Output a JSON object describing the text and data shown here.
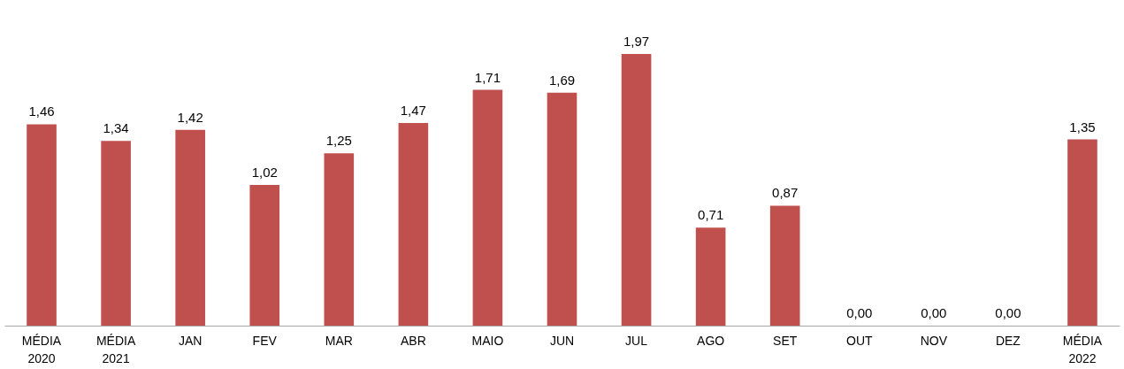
{
  "chart_data": {
    "type": "bar",
    "categories": [
      "MÉDIA 2020",
      "MÉDIA 2021",
      "JAN",
      "FEV",
      "MAR",
      "ABR",
      "MAIO",
      "JUN",
      "JUL",
      "AGO",
      "SET",
      "OUT",
      "NOV",
      "DEZ",
      "MÉDIA 2022"
    ],
    "values": [
      1.46,
      1.34,
      1.42,
      1.02,
      1.25,
      1.47,
      1.71,
      1.69,
      1.97,
      0.71,
      0.87,
      0,
      0,
      0,
      1.35
    ],
    "value_labels": [
      "1,46",
      "1,34",
      "1,42",
      "1,02",
      "1,25",
      "1,47",
      "1,71",
      "1,69",
      "1,97",
      "0,71",
      "0,87",
      "0,00",
      "0,00",
      "0,00",
      "1,35"
    ],
    "color": "#c0504d",
    "tick_labels": "x"
  }
}
